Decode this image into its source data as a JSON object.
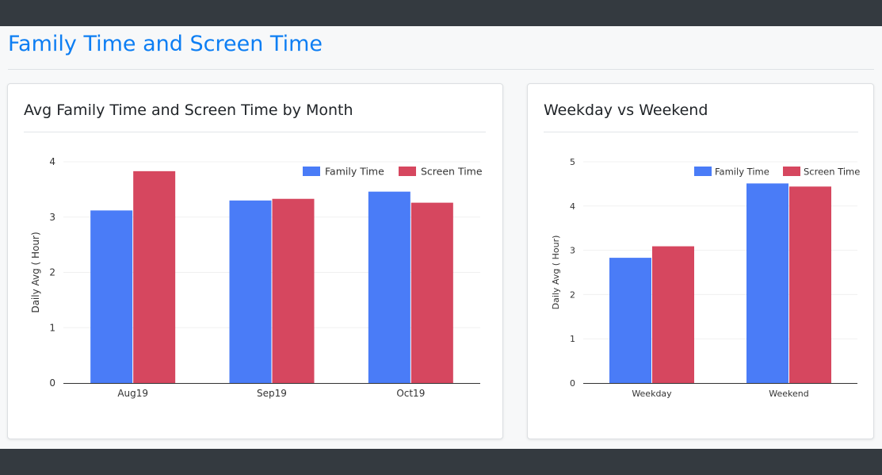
{
  "page": {
    "title": "Family Time and Screen Time"
  },
  "colors": {
    "family": "#4a7cf7",
    "screen": "#d6475f",
    "header": "#343a40",
    "title": "#0d7ef3"
  },
  "cards": [
    {
      "title": "Avg Family Time and Screen Time by Month"
    },
    {
      "title": "Weekday vs Weekend"
    }
  ],
  "chart_data": [
    {
      "type": "bar",
      "title": "Avg Family Time and Screen Time by Month",
      "categories": [
        "Aug19",
        "Sep19",
        "Oct19"
      ],
      "series": [
        {
          "name": "Family Time",
          "color": "#4a7cf7",
          "values": [
            3.12,
            3.3,
            3.46
          ]
        },
        {
          "name": "Screen Time",
          "color": "#d6475f",
          "values": [
            3.83,
            3.33,
            3.26
          ]
        }
      ],
      "xlabel": "",
      "ylabel": "Daily Avg ( Hour)",
      "ylim": [
        0,
        4
      ],
      "yticks": [
        "0",
        "1",
        "2",
        "3",
        "4"
      ],
      "grid": true,
      "legend": "top-right"
    },
    {
      "type": "bar",
      "title": "Weekday vs Weekend",
      "categories": [
        "Weekday",
        "Weekend"
      ],
      "series": [
        {
          "name": "Family Time",
          "color": "#4a7cf7",
          "values": [
            2.83,
            4.51
          ]
        },
        {
          "name": "Screen Time",
          "color": "#d6475f",
          "values": [
            3.09,
            4.44
          ]
        }
      ],
      "xlabel": "",
      "ylabel": "Daily Avg ( Hour)",
      "ylim": [
        0,
        5
      ],
      "yticks": [
        "0",
        "1",
        "2",
        "3",
        "4",
        "5"
      ],
      "grid": true,
      "legend": "top-right"
    }
  ]
}
